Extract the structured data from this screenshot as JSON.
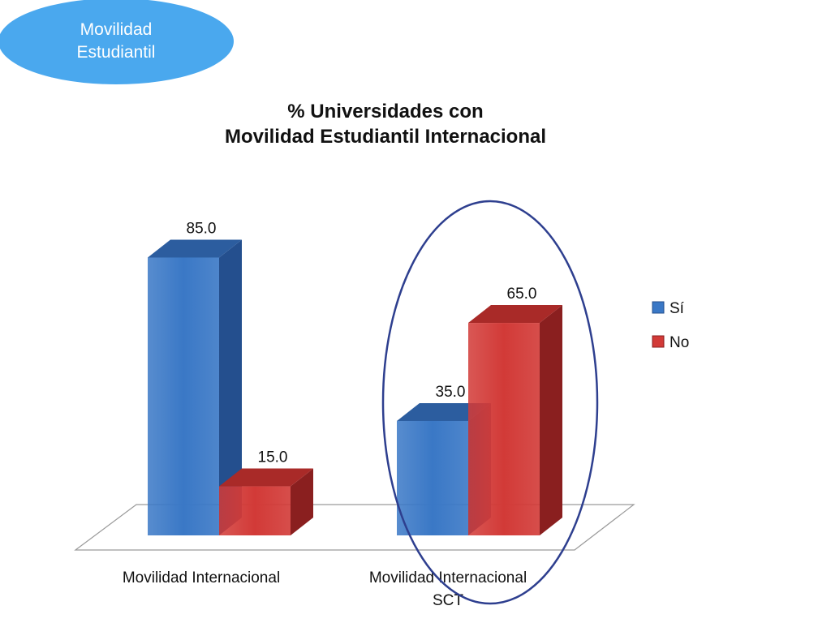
{
  "badge": {
    "line1": "Movilidad",
    "line2": "Estudiantil"
  },
  "chart_data": {
    "type": "bar",
    "title_line1": "% Universidades con",
    "title_line2": "Movilidad Estudiantil  Internacional",
    "categories": [
      [
        "Movilidad Internacional"
      ],
      [
        "Movilidad Internacional",
        "SCT"
      ]
    ],
    "series": [
      {
        "name": "Sí",
        "values": [
          85.0,
          35.0
        ],
        "color": "#3a78c6",
        "side_color": "#244f8e",
        "top_color": "#2c5d9f"
      },
      {
        "name": "No",
        "values": [
          15.0,
          65.0
        ],
        "color": "#d23a37",
        "side_color": "#8a1f1f",
        "top_color": "#a92a28"
      }
    ],
    "value_format": "0.0",
    "ylim": [
      0,
      100
    ],
    "legend_position": "right",
    "grid": false,
    "highlight": {
      "category_index": 1,
      "outline_color": "#2e3f8f"
    }
  }
}
